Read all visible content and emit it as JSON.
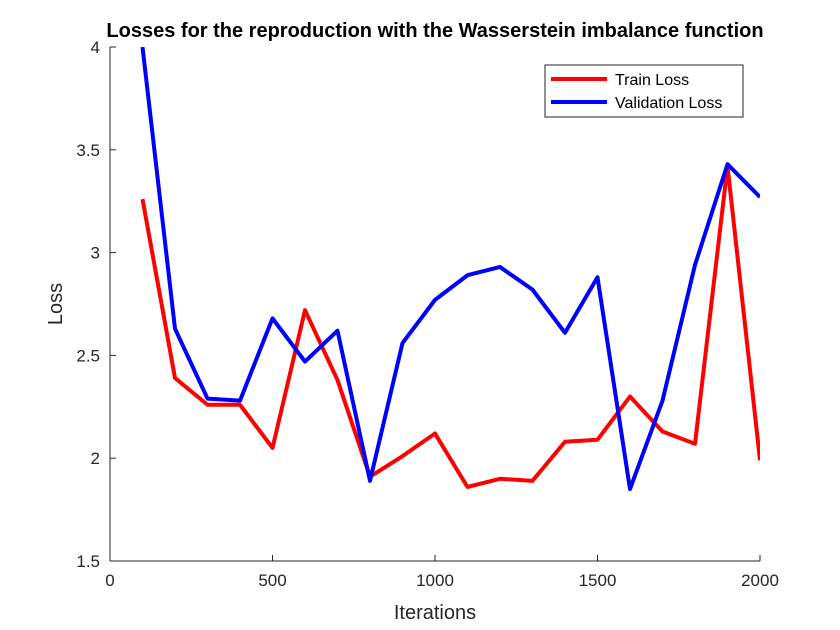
{
  "chart_data": {
    "type": "line",
    "title": "Losses for the reproduction with the Wasserstein imbalance function",
    "xlabel": "Iterations",
    "ylabel": "Loss",
    "xlim": [
      0,
      2000
    ],
    "ylim": [
      1.5,
      4
    ],
    "xticks": [
      0,
      500,
      1000,
      1500,
      2000
    ],
    "yticks": [
      1.5,
      2,
      2.5,
      3,
      3.5,
      4
    ],
    "xtick_labels": [
      "0",
      "500",
      "1000",
      "1500",
      "2000"
    ],
    "ytick_labels": [
      "1.5",
      "2",
      "2.5",
      "3",
      "3.5",
      "4"
    ],
    "grid": false,
    "legend_position": "top-right",
    "x": [
      100,
      200,
      300,
      400,
      500,
      600,
      700,
      800,
      900,
      1000,
      1100,
      1200,
      1300,
      1400,
      1500,
      1600,
      1700,
      1800,
      1900,
      2000
    ],
    "series": [
      {
        "name": "Train Loss",
        "color": "#ff0000",
        "values": [
          3.26,
          2.39,
          2.26,
          2.26,
          2.05,
          2.72,
          2.38,
          1.91,
          2.01,
          2.12,
          1.86,
          1.9,
          1.89,
          2.08,
          2.09,
          2.3,
          2.13,
          2.07,
          3.42,
          1.99
        ]
      },
      {
        "name": "Validation Loss",
        "color": "#0000ff",
        "values": [
          4.0,
          2.63,
          2.29,
          2.28,
          2.68,
          2.47,
          2.62,
          1.89,
          2.56,
          2.77,
          2.89,
          2.93,
          2.82,
          2.61,
          2.88,
          1.85,
          2.28,
          2.94,
          3.43,
          3.27
        ]
      }
    ]
  }
}
